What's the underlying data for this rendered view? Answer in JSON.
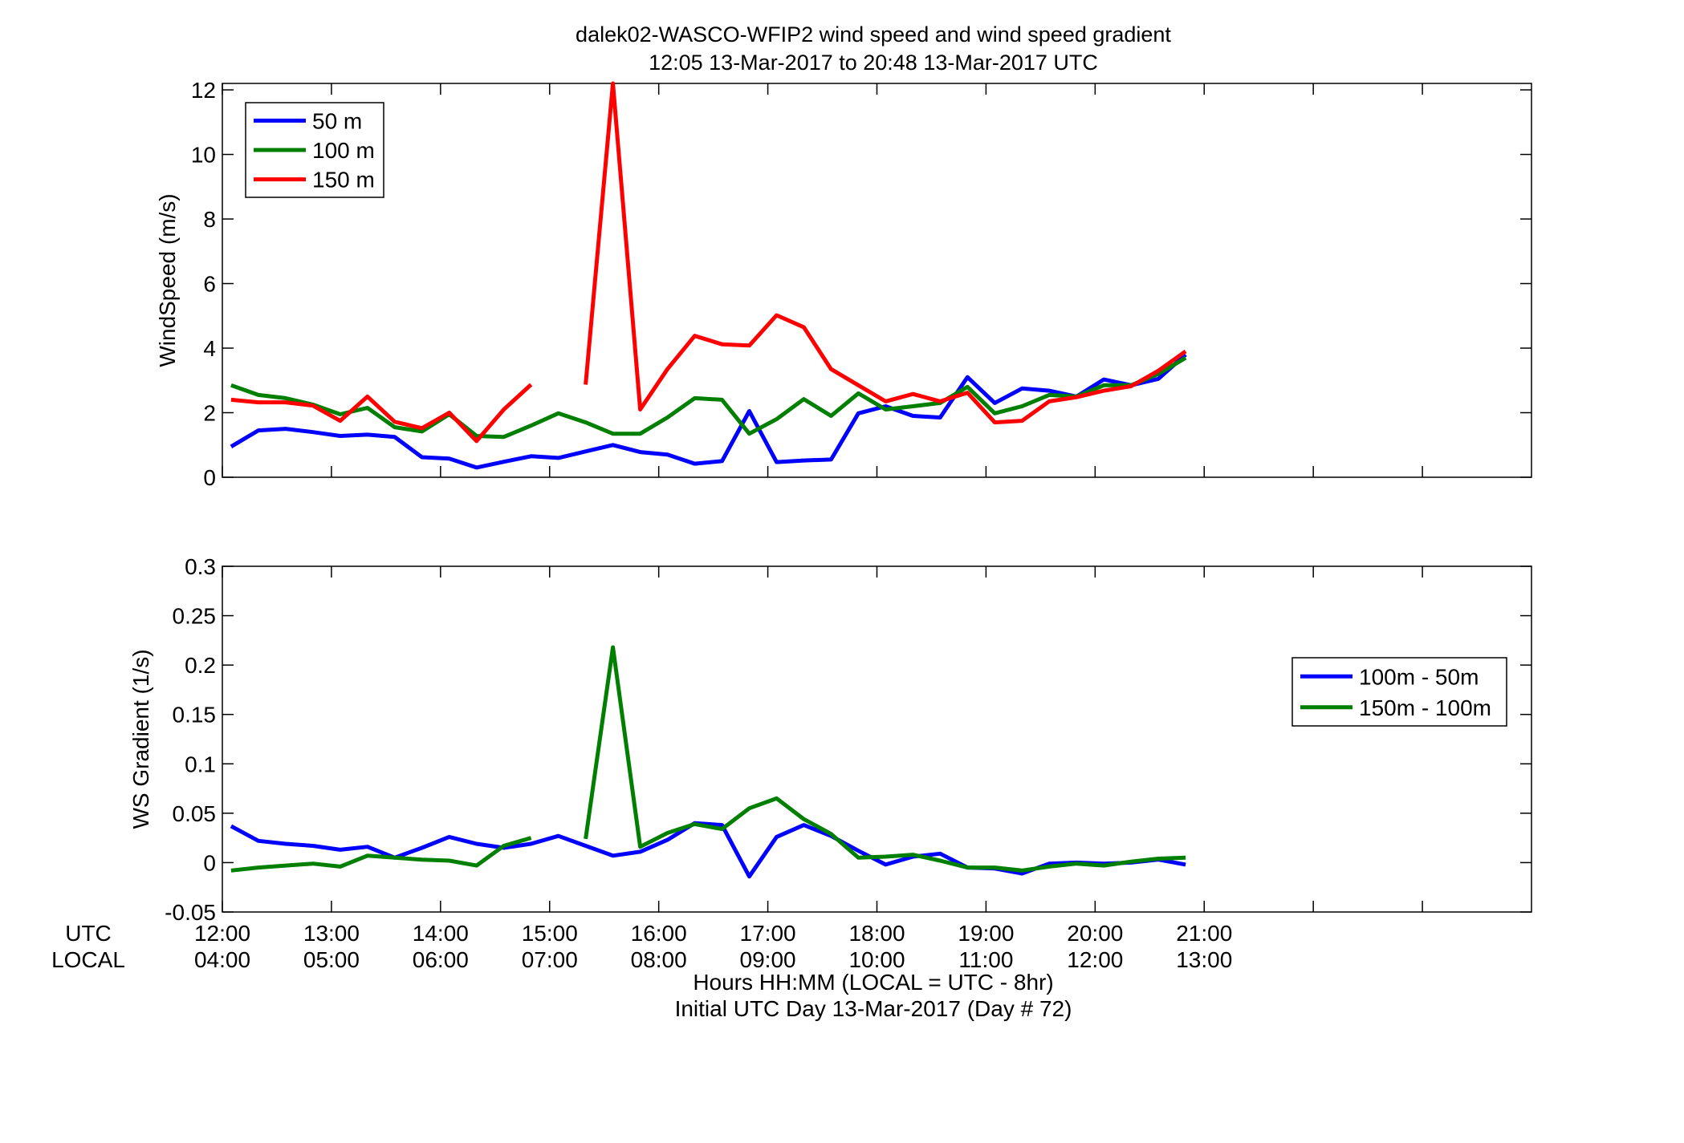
{
  "figure": {
    "title_line1": "dalek02-WASCO-WFIP2  wind speed and wind speed gradient",
    "title_line2": "12:05 13-Mar-2017 to 20:48 13-Mar-2017  UTC",
    "xlabel_line1": "Hours HH:MM  (LOCAL = UTC - 8hr)",
    "xlabel_line2": "Initial UTC Day 13-Mar-2017 (Day # 72)",
    "row_label_utc": "UTC",
    "row_label_local": "LOCAL"
  },
  "chart_data": [
    {
      "type": "line",
      "title": "dalek02-WASCO-WFIP2  wind speed and wind speed gradient",
      "subtitle": "12:05 13-Mar-2017 to 20:48 13-Mar-2017  UTC",
      "ylabel": "WindSpeed (m/s)",
      "xlabel": "",
      "xlim": [
        12,
        24
      ],
      "ylim": [
        0,
        12.2
      ],
      "yticks": [
        0,
        2,
        4,
        6,
        8,
        10,
        12
      ],
      "ytick_labels": [
        "0",
        "2",
        "4",
        "6",
        "8",
        "10",
        "12"
      ],
      "grid": false,
      "legend_position": "top-left",
      "series": [
        {
          "name": "50 m",
          "color": "#0000ff",
          "points": [
            [
              12.08,
              0.95
            ],
            [
              12.33,
              1.45
            ],
            [
              12.58,
              1.5
            ],
            [
              12.83,
              1.4
            ],
            [
              13.08,
              1.28
            ],
            [
              13.33,
              1.32
            ],
            [
              13.58,
              1.25
            ],
            [
              13.83,
              0.62
            ],
            [
              14.08,
              0.58
            ],
            [
              14.33,
              0.3
            ],
            [
              14.58,
              0.48
            ],
            [
              14.83,
              0.65
            ],
            [
              15.08,
              0.6
            ],
            [
              15.33,
              0.8
            ],
            [
              15.58,
              1.0
            ],
            [
              15.83,
              0.78
            ],
            [
              16.08,
              0.7
            ],
            [
              16.33,
              0.42
            ],
            [
              16.58,
              0.5
            ],
            [
              16.83,
              2.05
            ],
            [
              17.08,
              0.47
            ],
            [
              17.33,
              0.52
            ],
            [
              17.58,
              0.55
            ],
            [
              17.83,
              1.98
            ],
            [
              18.08,
              2.2
            ],
            [
              18.33,
              1.9
            ],
            [
              18.58,
              1.85
            ],
            [
              18.83,
              3.1
            ],
            [
              19.08,
              2.3
            ],
            [
              19.33,
              2.75
            ],
            [
              19.58,
              2.68
            ],
            [
              19.83,
              2.5
            ],
            [
              20.08,
              3.03
            ],
            [
              20.33,
              2.85
            ],
            [
              20.58,
              3.05
            ],
            [
              20.83,
              3.8
            ]
          ]
        },
        {
          "name": "100 m",
          "color": "#007f00",
          "points": [
            [
              12.08,
              2.85
            ],
            [
              12.33,
              2.55
            ],
            [
              12.58,
              2.45
            ],
            [
              12.83,
              2.25
            ],
            [
              13.08,
              1.95
            ],
            [
              13.33,
              2.15
            ],
            [
              13.58,
              1.55
            ],
            [
              13.83,
              1.42
            ],
            [
              14.08,
              1.95
            ],
            [
              14.33,
              1.28
            ],
            [
              14.58,
              1.25
            ],
            [
              14.83,
              1.6
            ],
            [
              15.08,
              1.98
            ],
            [
              15.33,
              1.7
            ],
            [
              15.58,
              1.35
            ],
            [
              15.83,
              1.35
            ],
            [
              16.08,
              1.85
            ],
            [
              16.33,
              2.45
            ],
            [
              16.58,
              2.4
            ],
            [
              16.83,
              1.35
            ],
            [
              17.08,
              1.8
            ],
            [
              17.33,
              2.42
            ],
            [
              17.58,
              1.9
            ],
            [
              17.83,
              2.6
            ],
            [
              18.08,
              2.1
            ],
            [
              18.33,
              2.2
            ],
            [
              18.58,
              2.3
            ],
            [
              18.83,
              2.8
            ],
            [
              19.08,
              1.98
            ],
            [
              19.33,
              2.2
            ],
            [
              19.58,
              2.55
            ],
            [
              19.83,
              2.5
            ],
            [
              20.08,
              2.85
            ],
            [
              20.33,
              2.85
            ],
            [
              20.58,
              3.2
            ],
            [
              20.83,
              3.7
            ]
          ]
        },
        {
          "name": "150 m",
          "color": "#ff0000",
          "points": [
            [
              12.08,
              2.4
            ],
            [
              12.33,
              2.32
            ],
            [
              12.58,
              2.32
            ],
            [
              12.83,
              2.22
            ],
            [
              13.08,
              1.75
            ],
            [
              13.33,
              2.5
            ],
            [
              13.58,
              1.72
            ],
            [
              13.83,
              1.52
            ],
            [
              14.08,
              2.0
            ],
            [
              14.33,
              1.12
            ],
            [
              14.58,
              2.1
            ],
            [
              14.83,
              2.87
            ],
            null,
            [
              15.33,
              2.87
            ],
            [
              15.58,
              12.2
            ],
            [
              15.83,
              2.1
            ],
            [
              16.08,
              3.35
            ],
            [
              16.33,
              4.38
            ],
            [
              16.58,
              4.12
            ],
            [
              16.83,
              4.08
            ],
            [
              17.08,
              5.02
            ],
            [
              17.33,
              4.65
            ],
            [
              17.58,
              3.35
            ],
            [
              17.83,
              2.85
            ],
            [
              18.08,
              2.35
            ],
            [
              18.33,
              2.58
            ],
            [
              18.58,
              2.35
            ],
            [
              18.83,
              2.62
            ],
            [
              19.08,
              1.7
            ],
            [
              19.33,
              1.75
            ],
            [
              19.58,
              2.35
            ],
            [
              19.83,
              2.48
            ],
            [
              20.08,
              2.68
            ],
            [
              20.33,
              2.82
            ],
            [
              20.58,
              3.3
            ],
            [
              20.83,
              3.9
            ]
          ]
        }
      ]
    },
    {
      "type": "line",
      "ylabel": "WS Gradient (1/s)",
      "xlabel": "Hours HH:MM  (LOCAL = UTC - 8hr)",
      "xlim": [
        12,
        24
      ],
      "ylim": [
        -0.05,
        0.3
      ],
      "yticks": [
        -0.05,
        0,
        0.05,
        0.1,
        0.15,
        0.2,
        0.25,
        0.3
      ],
      "ytick_labels": [
        "-0.05",
        "0",
        "0.05",
        "0.1",
        "0.15",
        "0.2",
        "0.25",
        "0.3"
      ],
      "xticks": [
        12,
        13,
        14,
        15,
        16,
        17,
        18,
        19,
        20,
        21
      ],
      "xtick_labels_utc": [
        "12:00",
        "13:00",
        "14:00",
        "15:00",
        "16:00",
        "17:00",
        "18:00",
        "19:00",
        "20:00",
        "21:00"
      ],
      "xtick_labels_local": [
        "04:00",
        "05:00",
        "06:00",
        "07:00",
        "08:00",
        "09:00",
        "10:00",
        "11:00",
        "12:00",
        "13:00"
      ],
      "grid": false,
      "legend_position": "right",
      "series": [
        {
          "name": "100m - 50m",
          "color": "#0000ff",
          "points": [
            [
              12.08,
              0.037
            ],
            [
              12.33,
              0.022
            ],
            [
              12.58,
              0.019
            ],
            [
              12.83,
              0.017
            ],
            [
              13.08,
              0.013
            ],
            [
              13.33,
              0.016
            ],
            [
              13.58,
              0.005
            ],
            [
              13.83,
              0.015
            ],
            [
              14.08,
              0.026
            ],
            [
              14.33,
              0.019
            ],
            [
              14.58,
              0.015
            ],
            [
              14.83,
              0.019
            ],
            [
              15.08,
              0.027
            ],
            [
              15.33,
              0.017
            ],
            [
              15.58,
              0.007
            ],
            [
              15.83,
              0.011
            ],
            [
              16.08,
              0.023
            ],
            [
              16.33,
              0.04
            ],
            [
              16.58,
              0.038
            ],
            [
              16.83,
              -0.014
            ],
            [
              17.08,
              0.026
            ],
            [
              17.33,
              0.038
            ],
            [
              17.58,
              0.027
            ],
            [
              17.83,
              0.012
            ],
            [
              18.08,
              -0.002
            ],
            [
              18.33,
              0.006
            ],
            [
              18.58,
              0.009
            ],
            [
              18.83,
              -0.005
            ],
            [
              19.08,
              -0.006
            ],
            [
              19.33,
              -0.011
            ],
            [
              19.58,
              -0.001
            ],
            [
              19.83,
              0.0
            ],
            [
              20.08,
              -0.001
            ],
            [
              20.33,
              0.0
            ],
            [
              20.58,
              0.003
            ],
            [
              20.83,
              -0.002
            ]
          ]
        },
        {
          "name": "150m - 100m",
          "color": "#007f00",
          "points": [
            [
              12.08,
              -0.008
            ],
            [
              12.33,
              -0.005
            ],
            [
              12.58,
              -0.003
            ],
            [
              12.83,
              -0.001
            ],
            [
              13.08,
              -0.004
            ],
            [
              13.33,
              0.007
            ],
            [
              13.58,
              0.005
            ],
            [
              13.83,
              0.003
            ],
            [
              14.08,
              0.002
            ],
            [
              14.33,
              -0.003
            ],
            [
              14.58,
              0.017
            ],
            [
              14.83,
              0.025
            ],
            null,
            [
              15.33,
              0.024
            ],
            [
              15.58,
              0.218
            ],
            [
              15.83,
              0.016
            ],
            [
              16.08,
              0.03
            ],
            [
              16.33,
              0.039
            ],
            [
              16.58,
              0.034
            ],
            [
              16.83,
              0.055
            ],
            [
              17.08,
              0.065
            ],
            [
              17.33,
              0.044
            ],
            [
              17.58,
              0.029
            ],
            [
              17.83,
              0.005
            ],
            [
              18.08,
              0.006
            ],
            [
              18.33,
              0.008
            ],
            [
              18.58,
              0.002
            ],
            [
              18.83,
              -0.005
            ],
            [
              19.08,
              -0.005
            ],
            [
              19.33,
              -0.008
            ],
            [
              19.58,
              -0.004
            ],
            [
              19.83,
              -0.001
            ],
            [
              20.08,
              -0.003
            ],
            [
              20.33,
              0.001
            ],
            [
              20.58,
              0.004
            ],
            [
              20.83,
              0.005
            ]
          ]
        }
      ]
    }
  ]
}
